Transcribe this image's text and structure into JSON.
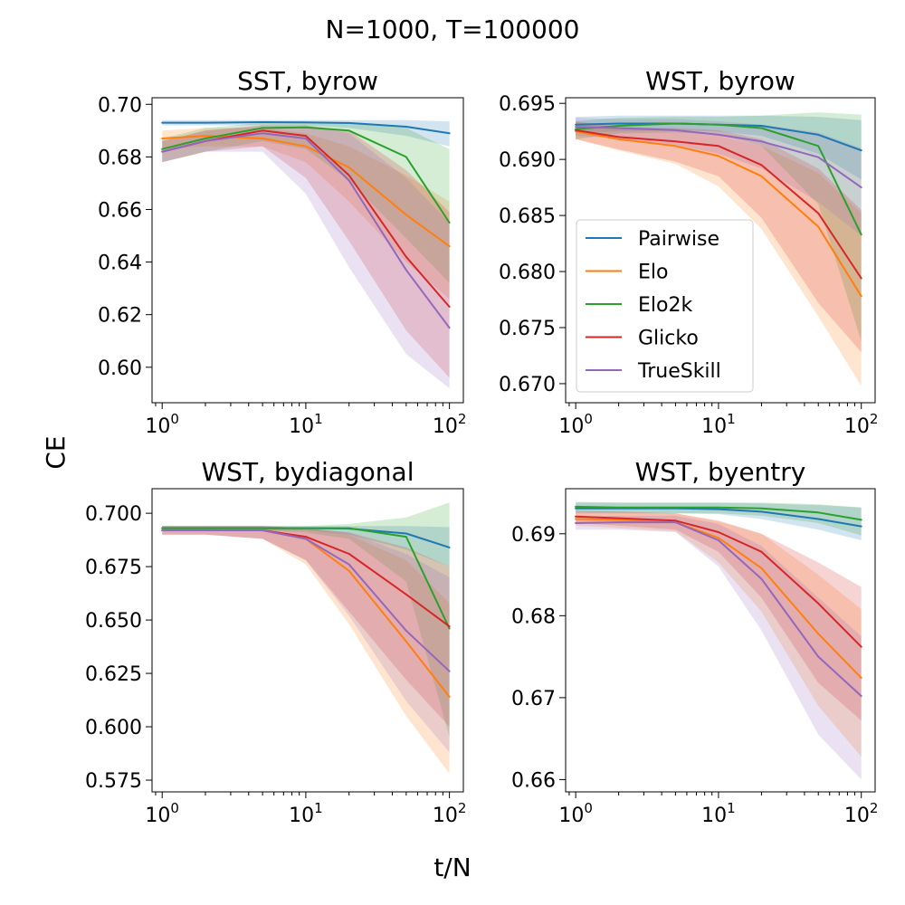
{
  "figure": {
    "suptitle": "N=1000, T=100000",
    "xlabel": "t/N",
    "ylabel": "CE"
  },
  "chart_data": [
    {
      "type": "line",
      "title": "SST, byrow",
      "xscale": "log",
      "xlim": [
        0.85,
        125
      ],
      "ylim": [
        0.5865,
        0.7025
      ],
      "yticks": [
        "0.60",
        "0.62",
        "0.64",
        "0.66",
        "0.68",
        "0.70"
      ],
      "legend": null,
      "x": [
        1,
        2,
        5,
        10,
        20,
        50,
        100
      ],
      "series": [
        {
          "name": "Pairwise",
          "color": "#1f77b4",
          "values": [
            0.693,
            0.693,
            0.6932,
            0.6931,
            0.6929,
            0.6915,
            0.689
          ],
          "lower": [
            0.692,
            0.692,
            0.692,
            0.692,
            0.691,
            0.688,
            0.684
          ],
          "upper": [
            0.694,
            0.694,
            0.694,
            0.694,
            0.694,
            0.694,
            0.6935
          ]
        },
        {
          "name": "Elo",
          "color": "#ff7f0e",
          "values": [
            0.687,
            0.688,
            0.687,
            0.684,
            0.676,
            0.658,
            0.646
          ],
          "lower": [
            0.683,
            0.684,
            0.684,
            0.678,
            0.663,
            0.64,
            0.626
          ],
          "upper": [
            0.69,
            0.691,
            0.691,
            0.689,
            0.684,
            0.673,
            0.663
          ]
        },
        {
          "name": "Elo2k",
          "color": "#2ca02c",
          "values": [
            0.683,
            0.687,
            0.691,
            0.6912,
            0.69,
            0.68,
            0.655
          ],
          "lower": [
            0.678,
            0.682,
            0.686,
            0.683,
            0.671,
            0.649,
            0.632
          ],
          "upper": [
            0.687,
            0.691,
            0.693,
            0.693,
            0.693,
            0.691,
            0.683
          ]
        },
        {
          "name": "Glicko",
          "color": "#d62728",
          "values": [
            0.682,
            0.686,
            0.69,
            0.688,
            0.673,
            0.642,
            0.623
          ],
          "lower": [
            0.678,
            0.682,
            0.684,
            0.672,
            0.648,
            0.614,
            0.596
          ],
          "upper": [
            0.686,
            0.69,
            0.692,
            0.692,
            0.69,
            0.675,
            0.659
          ]
        },
        {
          "name": "TrueSkill",
          "color": "#9467bd",
          "values": [
            0.682,
            0.686,
            0.689,
            0.687,
            0.671,
            0.637,
            0.615
          ],
          "lower": [
            0.678,
            0.682,
            0.682,
            0.666,
            0.638,
            0.605,
            0.592
          ],
          "upper": [
            0.686,
            0.69,
            0.692,
            0.692,
            0.689,
            0.672,
            0.655
          ]
        }
      ]
    },
    {
      "type": "line",
      "title": "WST, byrow",
      "xscale": "log",
      "xlim": [
        0.85,
        125
      ],
      "ylim": [
        0.6683,
        0.6955
      ],
      "yticks": [
        "0.670",
        "0.675",
        "0.680",
        "0.685",
        "0.690",
        "0.695"
      ],
      "legend": "lower-left",
      "x": [
        1,
        2,
        5,
        10,
        20,
        50,
        100
      ],
      "series": [
        {
          "name": "Pairwise",
          "color": "#1f77b4",
          "values": [
            0.6931,
            0.6932,
            0.6932,
            0.6931,
            0.693,
            0.6922,
            0.6908
          ],
          "lower": [
            0.6924,
            0.6925,
            0.6926,
            0.6925,
            0.6921,
            0.6905,
            0.6882
          ],
          "upper": [
            0.6938,
            0.6939,
            0.6939,
            0.6939,
            0.6939,
            0.6938,
            0.6935
          ]
        },
        {
          "name": "Elo",
          "color": "#ff7f0e",
          "values": [
            0.6925,
            0.6918,
            0.6912,
            0.6903,
            0.6885,
            0.684,
            0.6778
          ],
          "lower": [
            0.6918,
            0.6908,
            0.6896,
            0.6876,
            0.6838,
            0.676,
            0.6698
          ],
          "upper": [
            0.6933,
            0.6928,
            0.6925,
            0.6921,
            0.6912,
            0.6888,
            0.6852
          ]
        },
        {
          "name": "Elo2k",
          "color": "#2ca02c",
          "values": [
            0.6927,
            0.693,
            0.6932,
            0.6931,
            0.6928,
            0.6912,
            0.6833
          ],
          "lower": [
            0.6918,
            0.6923,
            0.6924,
            0.6922,
            0.6912,
            0.686,
            0.6738
          ],
          "upper": [
            0.6934,
            0.6937,
            0.6938,
            0.6938,
            0.6939,
            0.6942,
            0.694
          ]
        },
        {
          "name": "Glicko",
          "color": "#d62728",
          "values": [
            0.6926,
            0.692,
            0.6916,
            0.6912,
            0.6895,
            0.6852,
            0.6794
          ],
          "lower": [
            0.6918,
            0.6909,
            0.6898,
            0.6885,
            0.6848,
            0.6772,
            0.6728
          ],
          "upper": [
            0.6934,
            0.6929,
            0.6928,
            0.6926,
            0.6918,
            0.6892,
            0.6855
          ]
        },
        {
          "name": "TrueSkill",
          "color": "#9467bd",
          "values": [
            0.6929,
            0.6928,
            0.6926,
            0.6922,
            0.6916,
            0.6902,
            0.6875
          ],
          "lower": [
            0.6921,
            0.6919,
            0.6913,
            0.6905,
            0.6892,
            0.6862,
            0.6832
          ],
          "upper": [
            0.6937,
            0.6936,
            0.6936,
            0.6934,
            0.6931,
            0.6924,
            0.691
          ]
        }
      ]
    },
    {
      "type": "line",
      "title": "WST, bydiagonal",
      "xscale": "log",
      "xlim": [
        0.85,
        125
      ],
      "ylim": [
        0.5695,
        0.7115
      ],
      "yticks": [
        "0.575",
        "0.600",
        "0.625",
        "0.650",
        "0.675",
        "0.700"
      ],
      "legend": null,
      "x": [
        1,
        2,
        5,
        10,
        20,
        50,
        100
      ],
      "series": [
        {
          "name": "Pairwise",
          "color": "#1f77b4",
          "values": [
            0.693,
            0.693,
            0.693,
            0.693,
            0.6928,
            0.6905,
            0.684
          ],
          "lower": [
            0.692,
            0.692,
            0.692,
            0.692,
            0.69,
            0.683,
            0.675
          ],
          "upper": [
            0.694,
            0.694,
            0.694,
            0.694,
            0.694,
            0.694,
            0.6935
          ]
        },
        {
          "name": "Elo",
          "color": "#ff7f0e",
          "values": [
            0.692,
            0.692,
            0.692,
            0.688,
            0.673,
            0.64,
            0.614
          ],
          "lower": [
            0.69,
            0.69,
            0.688,
            0.676,
            0.648,
            0.605,
            0.578
          ],
          "upper": [
            0.694,
            0.694,
            0.694,
            0.693,
            0.69,
            0.678,
            0.658
          ]
        },
        {
          "name": "Elo2k",
          "color": "#2ca02c",
          "values": [
            0.693,
            0.693,
            0.693,
            0.693,
            0.693,
            0.689,
            0.646
          ],
          "lower": [
            0.692,
            0.692,
            0.692,
            0.691,
            0.688,
            0.668,
            0.595
          ],
          "upper": [
            0.694,
            0.694,
            0.694,
            0.694,
            0.695,
            0.698,
            0.705
          ]
        },
        {
          "name": "Glicko",
          "color": "#d62728",
          "values": [
            0.692,
            0.692,
            0.692,
            0.689,
            0.681,
            0.662,
            0.647
          ],
          "lower": [
            0.69,
            0.69,
            0.688,
            0.678,
            0.654,
            0.622,
            0.6
          ],
          "upper": [
            0.694,
            0.694,
            0.694,
            0.693,
            0.691,
            0.684,
            0.675
          ]
        },
        {
          "name": "TrueSkill",
          "color": "#9467bd",
          "values": [
            0.692,
            0.692,
            0.692,
            0.688,
            0.676,
            0.645,
            0.626
          ],
          "lower": [
            0.69,
            0.69,
            0.688,
            0.678,
            0.652,
            0.612,
            0.588
          ],
          "upper": [
            0.694,
            0.694,
            0.694,
            0.693,
            0.691,
            0.681,
            0.67
          ]
        }
      ]
    },
    {
      "type": "line",
      "title": "WST, byentry",
      "xscale": "log",
      "xlim": [
        0.85,
        125
      ],
      "ylim": [
        0.6585,
        0.6955
      ],
      "yticks": [
        "0.66",
        "0.67",
        "0.68",
        "0.69"
      ],
      "legend": null,
      "x": [
        1,
        2,
        5,
        10,
        20,
        50,
        100
      ],
      "series": [
        {
          "name": "Pairwise",
          "color": "#1f77b4",
          "values": [
            0.6931,
            0.6931,
            0.6931,
            0.693,
            0.6927,
            0.6918,
            0.6909
          ],
          "lower": [
            0.6925,
            0.6925,
            0.6925,
            0.6924,
            0.6918,
            0.6905,
            0.6892
          ],
          "upper": [
            0.6938,
            0.6938,
            0.6938,
            0.6938,
            0.6937,
            0.6935,
            0.6932
          ]
        },
        {
          "name": "Elo",
          "color": "#ff7f0e",
          "values": [
            0.6918,
            0.6917,
            0.6914,
            0.6895,
            0.6858,
            0.6778,
            0.6724
          ],
          "lower": [
            0.691,
            0.6907,
            0.6903,
            0.6865,
            0.6805,
            0.669,
            0.6628
          ],
          "upper": [
            0.6927,
            0.6927,
            0.6925,
            0.6915,
            0.69,
            0.685,
            0.6808
          ]
        },
        {
          "name": "Elo2k",
          "color": "#2ca02c",
          "values": [
            0.6933,
            0.6932,
            0.6932,
            0.6932,
            0.6931,
            0.6926,
            0.6917
          ],
          "lower": [
            0.6927,
            0.6926,
            0.6925,
            0.6925,
            0.6922,
            0.6913,
            0.6898
          ],
          "upper": [
            0.6939,
            0.6938,
            0.6938,
            0.6938,
            0.6938,
            0.6936,
            0.6932
          ]
        },
        {
          "name": "Glicko",
          "color": "#d62728",
          "values": [
            0.6921,
            0.6919,
            0.6916,
            0.6902,
            0.6878,
            0.6815,
            0.6762
          ],
          "lower": [
            0.6913,
            0.691,
            0.6905,
            0.6878,
            0.6822,
            0.6718,
            0.6672
          ],
          "upper": [
            0.6928,
            0.6927,
            0.6925,
            0.6916,
            0.69,
            0.6865,
            0.6835
          ]
        },
        {
          "name": "TrueSkill",
          "color": "#9467bd",
          "values": [
            0.6913,
            0.6914,
            0.6914,
            0.6892,
            0.6845,
            0.675,
            0.6702
          ],
          "lower": [
            0.6905,
            0.6905,
            0.6902,
            0.686,
            0.6782,
            0.6655,
            0.66
          ],
          "upper": [
            0.6921,
            0.6922,
            0.6922,
            0.6912,
            0.6885,
            0.6822,
            0.6775
          ]
        }
      ]
    }
  ]
}
